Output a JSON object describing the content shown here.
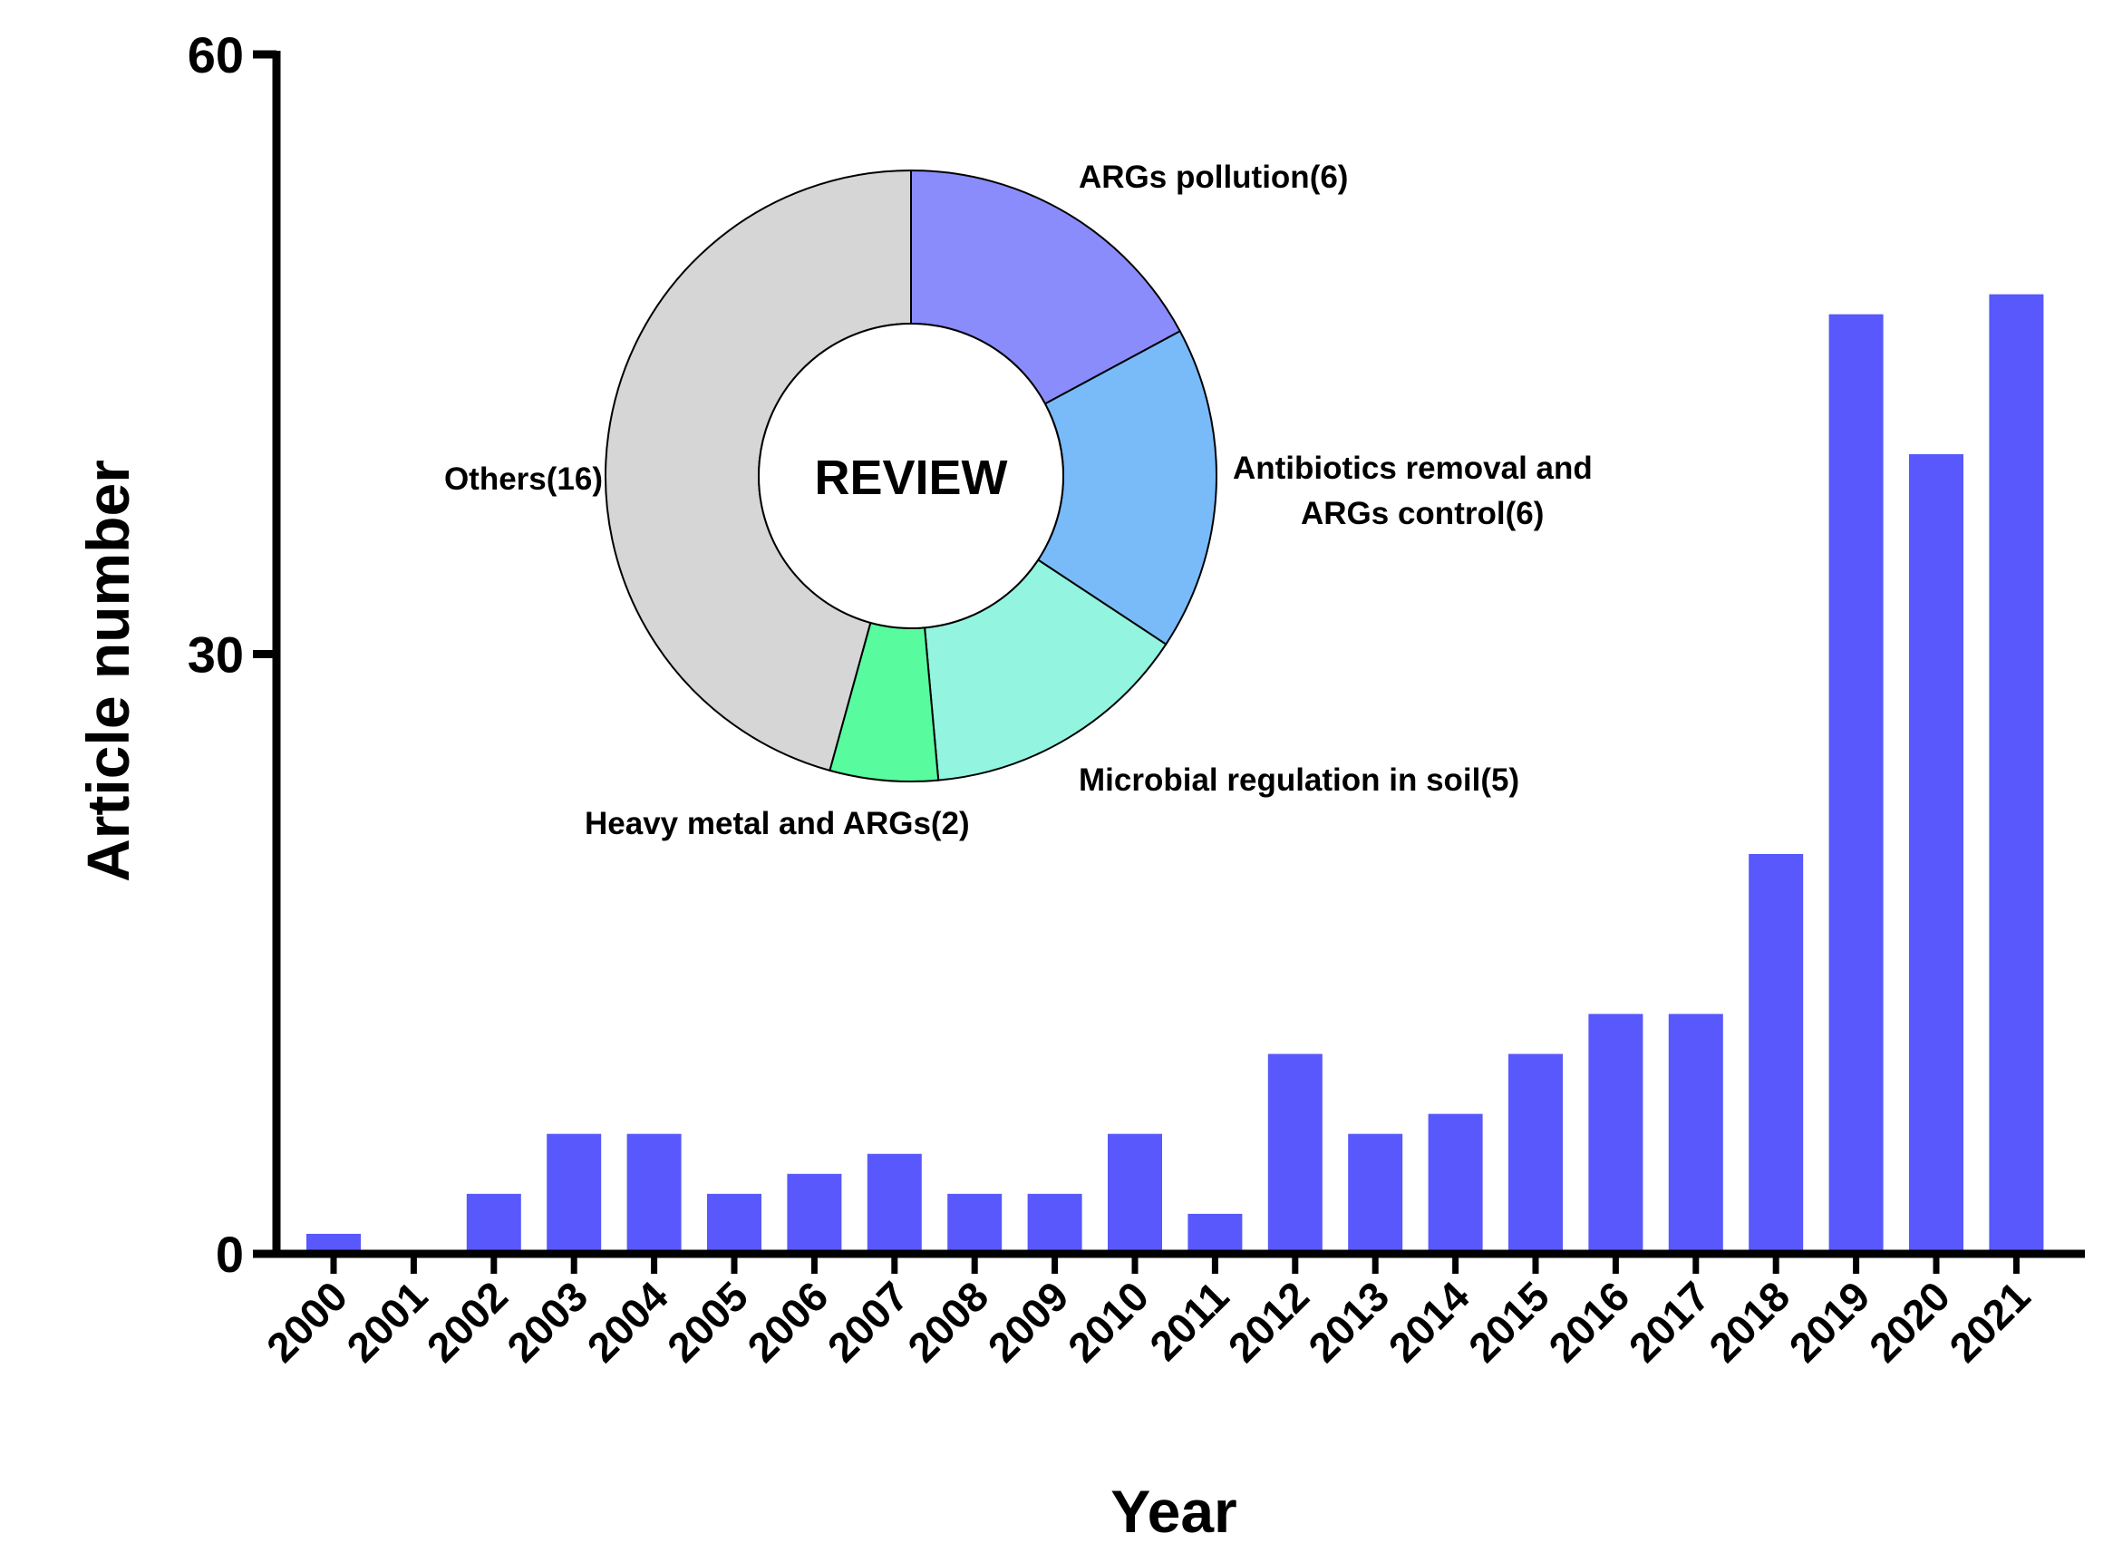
{
  "chart_data": [
    {
      "type": "bar",
      "xlabel": "Year",
      "ylabel": "Article number",
      "ylim": [
        0,
        60
      ],
      "yticks": [
        0,
        30,
        60
      ],
      "color": "#5858fc",
      "categories": [
        "2000",
        "2001",
        "2002",
        "2003",
        "2004",
        "2005",
        "2006",
        "2007",
        "2008",
        "2009",
        "2010",
        "2011",
        "2012",
        "2013",
        "2014",
        "2015",
        "2016",
        "2017",
        "2018",
        "2019",
        "2020",
        "2021"
      ],
      "values": [
        1,
        0,
        3,
        6,
        6,
        3,
        4,
        5,
        3,
        3,
        6,
        2,
        10,
        6,
        7,
        10,
        12,
        12,
        20,
        47,
        40,
        48
      ]
    },
    {
      "type": "pie",
      "center_label": "REVIEW",
      "slices": [
        {
          "label": "ARGs pollution(6)",
          "value": 6,
          "color": "#8a8cfb",
          "label_lines": [
            "ARGs pollution(6)"
          ]
        },
        {
          "label": "Antibiotics removal and ARGs control(6)",
          "value": 6,
          "color": "#79bbf9",
          "label_lines": [
            "Antibiotics removal and",
            "ARGs control(6)"
          ]
        },
        {
          "label": "Microbial regulation in soil(5)",
          "value": 5,
          "color": "#93f4e0",
          "label_lines": [
            "Microbial regulation in soil(5)"
          ]
        },
        {
          "label": "Heavy metal and ARGs(2)",
          "value": 2,
          "color": "#58fc9e",
          "label_lines": [
            "Heavy metal and ARGs(2)"
          ]
        },
        {
          "label": "Others(16)",
          "value": 16,
          "color": "#d6d6d6",
          "label_lines": [
            "Others(16)"
          ]
        }
      ]
    }
  ]
}
